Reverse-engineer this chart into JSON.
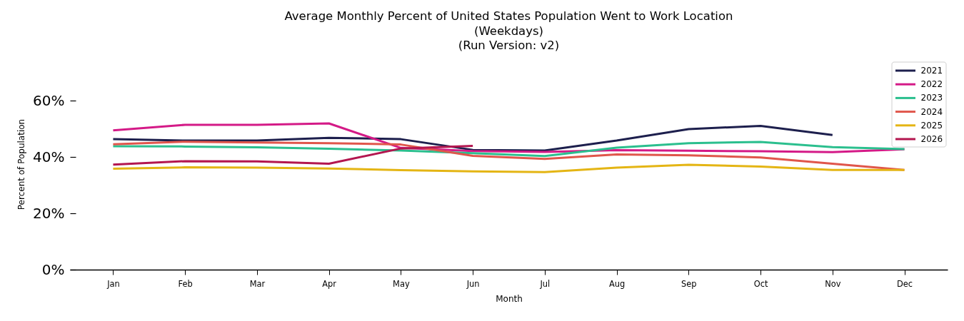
{
  "chart_data": {
    "type": "line",
    "title": "Average Monthly Percent of United States Population Went to Work Location\n(Weekdays)\n(Run Version: v2)",
    "xlabel": "Month",
    "ylabel": "Percent of Population",
    "categories": [
      "Jan",
      "Feb",
      "Mar",
      "Apr",
      "May",
      "Jun",
      "Jul",
      "Aug",
      "Sep",
      "Oct",
      "Nov",
      "Dec"
    ],
    "ylim": [
      0,
      60
    ],
    "yticks": [
      {
        "value": 0,
        "label": "0%"
      },
      {
        "value": 20,
        "label": "20%"
      },
      {
        "value": 40,
        "label": "40%"
      },
      {
        "value": 60,
        "label": "60%"
      }
    ],
    "legend": "top right",
    "series": [
      {
        "name": "2021",
        "color": "#1d1f4d",
        "values": [
          46.3,
          45.8,
          45.8,
          46.8,
          46.3,
          42.5,
          42.3,
          45.8,
          49.9,
          51.0,
          47.8,
          null
        ]
      },
      {
        "name": "2022",
        "color": "#d41a87",
        "values": [
          49.4,
          51.4,
          51.4,
          51.9,
          43.2,
          42.1,
          41.8,
          42.4,
          42.2,
          42.0,
          41.7,
          42.7
        ]
      },
      {
        "name": "2023",
        "color": "#2bbf8e",
        "values": [
          43.8,
          43.7,
          43.4,
          42.9,
          42.3,
          41.3,
          40.3,
          43.3,
          44.9,
          45.3,
          43.5,
          42.8
        ]
      },
      {
        "name": "2024",
        "color": "#e0564b",
        "values": [
          44.5,
          45.4,
          45.1,
          44.9,
          44.4,
          40.4,
          39.3,
          40.9,
          40.6,
          39.8,
          37.6,
          35.4
        ]
      },
      {
        "name": "2025",
        "color": "#e4b514",
        "values": [
          35.8,
          36.3,
          36.2,
          35.9,
          35.3,
          34.9,
          34.6,
          36.2,
          37.2,
          36.6,
          35.4,
          35.4
        ]
      },
      {
        "name": "2026",
        "color": "#b3164f",
        "values": [
          37.3,
          38.5,
          38.4,
          37.6,
          43.0,
          43.9,
          null,
          null,
          null,
          null,
          null,
          null
        ]
      }
    ]
  }
}
